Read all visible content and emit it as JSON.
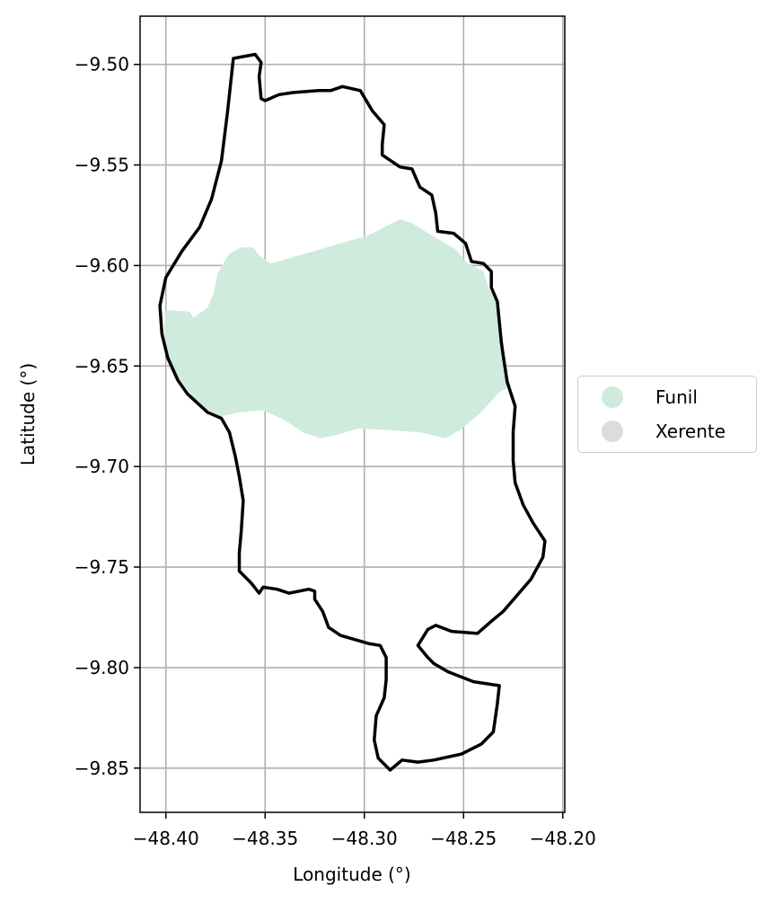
{
  "chart_data": {
    "type": "map",
    "xlabel": "Longitude (°)",
    "ylabel": "Latitude (°)",
    "xlim": [
      -48.413,
      -48.199
    ],
    "ylim": [
      -9.872,
      -9.476
    ],
    "x_ticks": [
      -48.4,
      -48.35,
      -48.3,
      -48.25,
      -48.2
    ],
    "x_tick_labels": [
      "−48.40",
      "−48.35",
      "−48.30",
      "−48.25",
      "−48.20"
    ],
    "y_ticks": [
      -9.5,
      -9.55,
      -9.6,
      -9.65,
      -9.7,
      -9.75,
      -9.8,
      -9.85
    ],
    "y_tick_labels": [
      "−9.50",
      "−9.55",
      "−9.60",
      "−9.65",
      "−9.70",
      "−9.75",
      "−9.80",
      "−9.85"
    ],
    "grid": true,
    "legend_position": "outside right",
    "legend": [
      {
        "label": "Funil",
        "color": "#cfebdd"
      },
      {
        "label": "Xerente",
        "color": "#dcdcdc"
      }
    ],
    "boundary": {
      "color": "#000000",
      "lonlat": [
        [
          -48.366,
          -9.497
        ],
        [
          -48.355,
          -9.495
        ],
        [
          -48.352,
          -9.499
        ],
        [
          -48.353,
          -9.506
        ],
        [
          -48.352,
          -9.517
        ],
        [
          -48.35,
          -9.518
        ],
        [
          -48.343,
          -9.515
        ],
        [
          -48.336,
          -9.514
        ],
        [
          -48.323,
          -9.513
        ],
        [
          -48.317,
          -9.513
        ],
        [
          -48.311,
          -9.511
        ],
        [
          -48.302,
          -9.513
        ],
        [
          -48.296,
          -9.523
        ],
        [
          -48.29,
          -9.53
        ],
        [
          -48.291,
          -9.54
        ],
        [
          -48.291,
          -9.545
        ],
        [
          -48.282,
          -9.551
        ],
        [
          -48.276,
          -9.552
        ],
        [
          -48.272,
          -9.561
        ],
        [
          -48.266,
          -9.565
        ],
        [
          -48.264,
          -9.574
        ],
        [
          -48.263,
          -9.583
        ],
        [
          -48.255,
          -9.584
        ],
        [
          -48.249,
          -9.589
        ],
        [
          -48.246,
          -9.598
        ],
        [
          -48.24,
          -9.599
        ],
        [
          -48.236,
          -9.603
        ],
        [
          -48.236,
          -9.611
        ],
        [
          -48.233,
          -9.618
        ],
        [
          -48.232,
          -9.628
        ],
        [
          -48.231,
          -9.638
        ],
        [
          -48.23,
          -9.645
        ],
        [
          -48.228,
          -9.658
        ],
        [
          -48.224,
          -9.67
        ],
        [
          -48.225,
          -9.683
        ],
        [
          -48.225,
          -9.697
        ],
        [
          -48.224,
          -9.708
        ],
        [
          -48.22,
          -9.719
        ],
        [
          -48.215,
          -9.728
        ],
        [
          -48.209,
          -9.737
        ],
        [
          -48.21,
          -9.745
        ],
        [
          -48.216,
          -9.756
        ],
        [
          -48.23,
          -9.772
        ],
        [
          -48.236,
          -9.777
        ],
        [
          -48.243,
          -9.783
        ],
        [
          -48.256,
          -9.782
        ],
        [
          -48.264,
          -9.779
        ],
        [
          -48.268,
          -9.781
        ],
        [
          -48.273,
          -9.789
        ],
        [
          -48.268,
          -9.795
        ],
        [
          -48.265,
          -9.798
        ],
        [
          -48.258,
          -9.802
        ],
        [
          -48.245,
          -9.807
        ],
        [
          -48.232,
          -9.809
        ],
        [
          -48.233,
          -9.818
        ],
        [
          -48.235,
          -9.832
        ],
        [
          -48.241,
          -9.838
        ],
        [
          -48.251,
          -9.843
        ],
        [
          -48.265,
          -9.846
        ],
        [
          -48.273,
          -9.847
        ],
        [
          -48.281,
          -9.846
        ],
        [
          -48.287,
          -9.851
        ],
        [
          -48.293,
          -9.845
        ],
        [
          -48.295,
          -9.836
        ],
        [
          -48.294,
          -9.824
        ],
        [
          -48.29,
          -9.815
        ],
        [
          -48.289,
          -9.806
        ],
        [
          -48.289,
          -9.795
        ],
        [
          -48.292,
          -9.789
        ],
        [
          -48.298,
          -9.788
        ],
        [
          -48.305,
          -9.786
        ],
        [
          -48.312,
          -9.784
        ],
        [
          -48.318,
          -9.78
        ],
        [
          -48.321,
          -9.772
        ],
        [
          -48.325,
          -9.766
        ],
        [
          -48.325,
          -9.762
        ],
        [
          -48.328,
          -9.761
        ],
        [
          -48.338,
          -9.763
        ],
        [
          -48.344,
          -9.761
        ],
        [
          -48.351,
          -9.76
        ],
        [
          -48.353,
          -9.763
        ],
        [
          -48.357,
          -9.758
        ],
        [
          -48.363,
          -9.752
        ],
        [
          -48.363,
          -9.743
        ],
        [
          -48.362,
          -9.732
        ],
        [
          -48.361,
          -9.717
        ],
        [
          -48.363,
          -9.705
        ],
        [
          -48.365,
          -9.695
        ],
        [
          -48.368,
          -9.683
        ],
        [
          -48.372,
          -9.676
        ],
        [
          -48.379,
          -9.673
        ],
        [
          -48.389,
          -9.664
        ],
        [
          -48.394,
          -9.657
        ],
        [
          -48.399,
          -9.646
        ],
        [
          -48.402,
          -9.634
        ],
        [
          -48.403,
          -9.62
        ],
        [
          -48.4,
          -9.606
        ],
        [
          -48.392,
          -9.593
        ],
        [
          -48.383,
          -9.581
        ],
        [
          -48.377,
          -9.567
        ],
        [
          -48.372,
          -9.548
        ],
        [
          -48.369,
          -9.524
        ],
        [
          -48.367,
          -9.506
        ],
        [
          -48.366,
          -9.497
        ]
      ]
    },
    "areas": [
      {
        "label": "Funil",
        "color": "#cfebdd",
        "lonlat": [
          [
            -48.4,
            -9.622
          ],
          [
            -48.388,
            -9.623
          ],
          [
            -48.386,
            -9.626
          ],
          [
            -48.379,
            -9.621
          ],
          [
            -48.376,
            -9.614
          ],
          [
            -48.374,
            -9.604
          ],
          [
            -48.371,
            -9.599
          ],
          [
            -48.368,
            -9.594
          ],
          [
            -48.362,
            -9.591
          ],
          [
            -48.356,
            -9.591
          ],
          [
            -48.353,
            -9.595
          ],
          [
            -48.347,
            -9.599
          ],
          [
            -48.298,
            -9.585
          ],
          [
            -48.282,
            -9.577
          ],
          [
            -48.276,
            -9.579
          ],
          [
            -48.266,
            -9.585
          ],
          [
            -48.254,
            -9.592
          ],
          [
            -48.248,
            -9.599
          ],
          [
            -48.24,
            -9.603
          ],
          [
            -48.237,
            -9.612
          ],
          [
            -48.233,
            -9.619
          ],
          [
            -48.232,
            -9.632
          ],
          [
            -48.231,
            -9.639
          ],
          [
            -48.229,
            -9.652
          ],
          [
            -48.226,
            -9.66
          ],
          [
            -48.232,
            -9.663
          ],
          [
            -48.241,
            -9.673
          ],
          [
            -48.252,
            -9.682
          ],
          [
            -48.259,
            -9.686
          ],
          [
            -48.272,
            -9.683
          ],
          [
            -48.286,
            -9.682
          ],
          [
            -48.303,
            -9.681
          ],
          [
            -48.313,
            -9.684
          ],
          [
            -48.322,
            -9.686
          ],
          [
            -48.331,
            -9.683
          ],
          [
            -48.34,
            -9.677
          ],
          [
            -48.351,
            -9.672
          ],
          [
            -48.363,
            -9.673
          ],
          [
            -48.372,
            -9.675
          ],
          [
            -48.383,
            -9.67
          ],
          [
            -48.395,
            -9.654
          ],
          [
            -48.399,
            -9.645
          ],
          [
            -48.401,
            -9.634
          ],
          [
            -48.4,
            -9.622
          ]
        ]
      }
    ]
  },
  "legend": {
    "items": [
      {
        "label": "Funil",
        "color": "#cfebdd"
      },
      {
        "label": "Xerente",
        "color": "#dcdcdc"
      }
    ]
  }
}
